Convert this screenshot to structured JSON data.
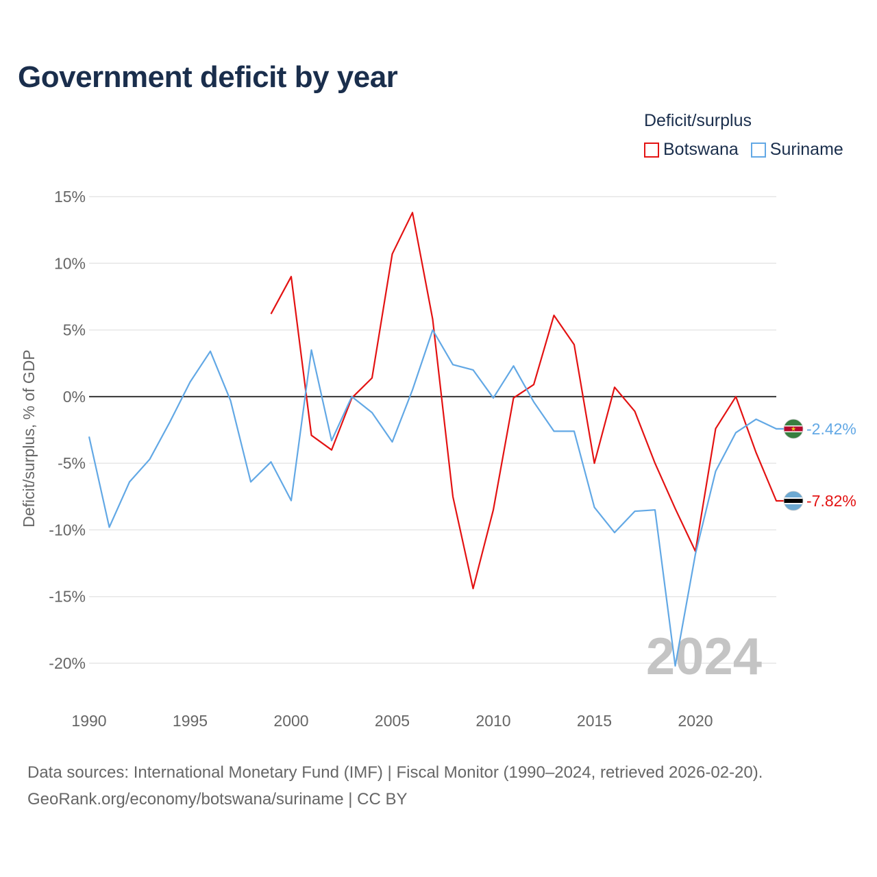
{
  "title": "Government deficit by year",
  "legend": {
    "title": "Deficit/surplus",
    "items": [
      {
        "label": "Botswana",
        "color": "#e31212"
      },
      {
        "label": "Suriname",
        "color": "#62a8e5"
      }
    ]
  },
  "footer": {
    "line1": "Data sources: International Monetary Fund (IMF) | Fiscal Monitor (1990–2024, retrieved 2026-02-20).",
    "line2": "GeoRank.org/economy/botswana/suriname | CC BY"
  },
  "chart_data": {
    "type": "line",
    "title": "Government deficit by year",
    "xlabel": "",
    "ylabel": "Deficit/surplus, % of GDP",
    "xlim": [
      1990,
      2024
    ],
    "ylim": [
      -22.5,
      15
    ],
    "yticks": [
      15,
      10,
      5,
      0,
      -5,
      -10,
      -15,
      -20
    ],
    "ytick_labels": [
      "15%",
      "10%",
      "5%",
      "0%",
      "-5%",
      "-10%",
      "-15%",
      "-20%"
    ],
    "xticks": [
      1990,
      1995,
      2000,
      2005,
      2010,
      2015,
      2020
    ],
    "xtick_labels": [
      "1990",
      "1995",
      "2000",
      "2005",
      "2010",
      "2015",
      "2020"
    ],
    "watermark_year": "2024",
    "series": [
      {
        "name": "Botswana",
        "color": "#e31212",
        "end_label": "-7.82%",
        "flag": "botswana",
        "x": [
          1999,
          2000,
          2001,
          2002,
          2003,
          2004,
          2005,
          2006,
          2007,
          2008,
          2009,
          2010,
          2011,
          2012,
          2013,
          2014,
          2015,
          2016,
          2017,
          2018,
          2019,
          2020,
          2021,
          2022,
          2023,
          2024
        ],
        "y": [
          6.2,
          9.0,
          -2.9,
          -4.0,
          -0.1,
          1.4,
          10.7,
          13.8,
          5.8,
          -7.5,
          -14.4,
          -8.5,
          -0.1,
          0.9,
          6.1,
          3.9,
          -5.0,
          0.7,
          -1.1,
          -5.0,
          -8.4,
          -11.6,
          -2.4,
          0.0,
          -4.2,
          -7.82
        ]
      },
      {
        "name": "Suriname",
        "color": "#62a8e5",
        "end_label": "-2.42%",
        "flag": "suriname",
        "x": [
          1990,
          1991,
          1992,
          1993,
          1994,
          1995,
          1996,
          1997,
          1998,
          1999,
          2000,
          2001,
          2002,
          2003,
          2004,
          2005,
          2006,
          2007,
          2008,
          2009,
          2010,
          2011,
          2012,
          2013,
          2014,
          2015,
          2016,
          2017,
          2018,
          2019,
          2020,
          2021,
          2022,
          2023,
          2024
        ],
        "y": [
          -3.0,
          -9.8,
          -6.4,
          -4.7,
          -1.9,
          1.1,
          3.4,
          -0.3,
          -6.4,
          -4.9,
          -7.8,
          3.5,
          -3.3,
          0.0,
          -1.2,
          -3.4,
          0.5,
          5.0,
          2.4,
          2.0,
          -0.1,
          2.3,
          -0.4,
          -2.6,
          -2.6,
          -8.3,
          -10.2,
          -8.6,
          -8.5,
          -20.2,
          -11.8,
          -5.6,
          -2.7,
          -1.7,
          -2.42
        ]
      }
    ]
  }
}
